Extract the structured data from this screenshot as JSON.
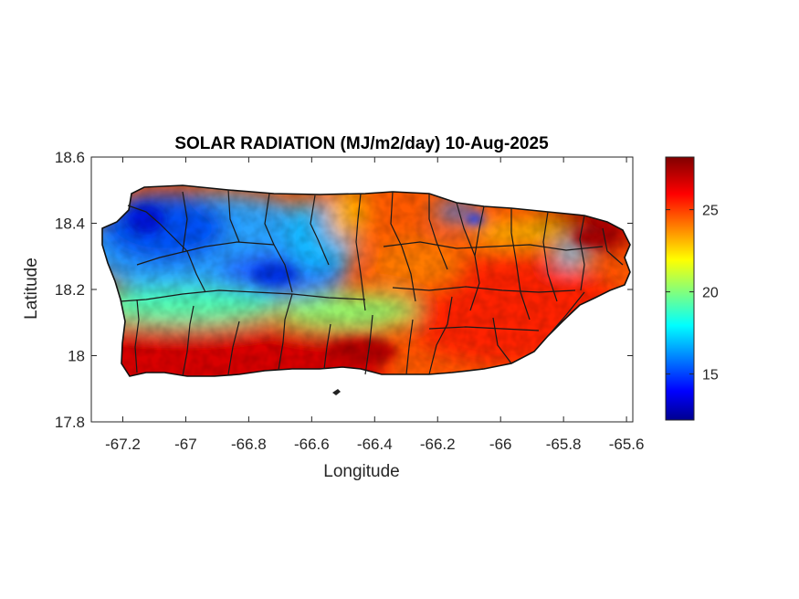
{
  "map": {
    "title": "SOLAR RADIATION (MJ/m2/day) 10-Aug-2025",
    "xlabel": "Longitude",
    "ylabel": "Latitude",
    "xlim": [
      -67.3,
      -65.58
    ],
    "ylim": [
      17.8,
      18.6
    ],
    "xticks": [
      {
        "value": -67.2,
        "label": "-67.2"
      },
      {
        "value": -67.0,
        "label": "-67"
      },
      {
        "value": -66.8,
        "label": "-66.8"
      },
      {
        "value": -66.6,
        "label": "-66.6"
      },
      {
        "value": -66.4,
        "label": "-66.4"
      },
      {
        "value": -66.2,
        "label": "-66.2"
      },
      {
        "value": -66.0,
        "label": "-66"
      },
      {
        "value": -65.8,
        "label": "-65.8"
      },
      {
        "value": -65.6,
        "label": "-65.6"
      }
    ],
    "yticks": [
      {
        "value": 17.8,
        "label": "17.8"
      },
      {
        "value": 18.0,
        "label": "18"
      },
      {
        "value": 18.2,
        "label": "18.2"
      },
      {
        "value": 18.4,
        "label": "18.4"
      },
      {
        "value": 18.6,
        "label": "18.6"
      }
    ],
    "colorbar": {
      "colormap": "jet",
      "range": [
        12.2,
        28.2
      ],
      "ticks": [
        {
          "value": 15,
          "label": "15"
        },
        {
          "value": 20,
          "label": "20"
        },
        {
          "value": 25,
          "label": "25"
        }
      ]
    },
    "colors": {
      "boundary": "#1a1a1a",
      "axes": "#262626",
      "outside": "#ffffff"
    }
  }
}
